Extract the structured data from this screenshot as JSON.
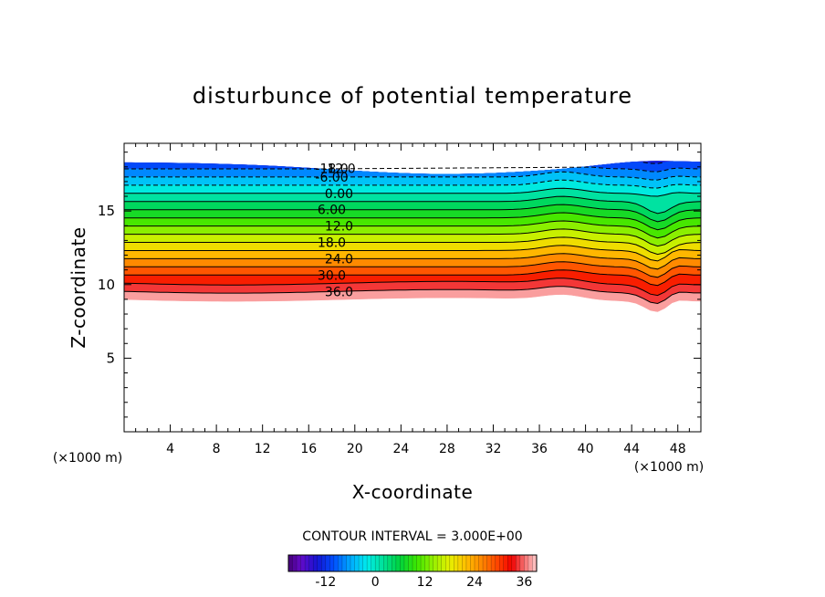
{
  "chart_data": {
    "type": "contour",
    "title": "disturbunce of potential temperature",
    "xlabel": "X-coordinate",
    "ylabel": "Z-coordinate",
    "x_unit_left": "(×1000 m)",
    "x_unit_right": "(×1000 m)",
    "xlim": [
      0,
      50
    ],
    "ylim": [
      0,
      19.6
    ],
    "x_ticks": [
      4,
      8,
      12,
      16,
      20,
      24,
      28,
      32,
      36,
      40,
      44,
      48
    ],
    "x_tick_labels": [
      "4",
      "8",
      "12",
      "16",
      "20",
      "24",
      "28",
      "32",
      "36",
      "40",
      "44",
      "48"
    ],
    "y_ticks": [
      5,
      10,
      15
    ],
    "y_tick_labels": [
      "5",
      "10",
      "15"
    ],
    "contour_interval_text": "CONTOUR INTERVAL = 3.000E+00",
    "contour_interval": 3.0,
    "field_range": [
      -18,
      38
    ],
    "contour_labels": [
      "-18.0",
      "-12.0",
      "-6.00",
      "0.00",
      "6.00",
      "12.0",
      "18.0",
      "24.0",
      "30.0",
      "36.0"
    ],
    "contour_label_values": [
      -18,
      -12,
      -6,
      0,
      6,
      12,
      18,
      24,
      30,
      36
    ],
    "colorbar": {
      "ticks": [
        -12,
        0,
        12,
        24,
        36
      ],
      "tick_labels": [
        "-12",
        "0",
        "12",
        "24",
        "36"
      ],
      "range": [
        -21,
        39
      ]
    },
    "negative_contours_dashed": true,
    "grid": false,
    "legend": "colorbar-bottom"
  }
}
